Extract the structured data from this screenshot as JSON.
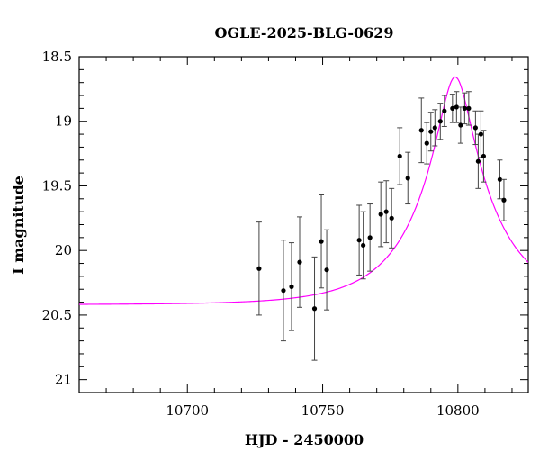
{
  "chart_data": {
    "type": "scatter",
    "title": "OGLE-2025-BLG-0629",
    "xlabel": "HJD - 2450000",
    "ylabel": "I magnitude",
    "xlim": [
      10660,
      10826
    ],
    "ylim": [
      21.1,
      18.5
    ],
    "y_inverted": true,
    "xticks": [
      10700,
      10750,
      10800
    ],
    "yticks": [
      18.5,
      19,
      19.5,
      20,
      20.5,
      21
    ],
    "ytick_labels": [
      "18.5",
      "19",
      "19.5",
      "20",
      "20.5",
      "21"
    ],
    "grid": false,
    "colors": {
      "data": "#000000",
      "model": "#ff00ff"
    },
    "series": [
      {
        "kind": "points_with_errorbars",
        "points": [
          {
            "x": 10726.5,
            "y": 20.14,
            "err": 0.36
          },
          {
            "x": 10735.5,
            "y": 20.31,
            "err": 0.39
          },
          {
            "x": 10738.5,
            "y": 20.28,
            "err": 0.34
          },
          {
            "x": 10741.5,
            "y": 20.09,
            "err": 0.35
          },
          {
            "x": 10747.0,
            "y": 20.45,
            "err": 0.4
          },
          {
            "x": 10749.5,
            "y": 19.93,
            "err": 0.36
          },
          {
            "x": 10751.5,
            "y": 20.15,
            "err": 0.31
          },
          {
            "x": 10763.5,
            "y": 19.92,
            "err": 0.27
          },
          {
            "x": 10765.0,
            "y": 19.96,
            "err": 0.26
          },
          {
            "x": 10767.5,
            "y": 19.9,
            "err": 0.26
          },
          {
            "x": 10771.5,
            "y": 19.72,
            "err": 0.25
          },
          {
            "x": 10773.5,
            "y": 19.7,
            "err": 0.24
          },
          {
            "x": 10775.5,
            "y": 19.75,
            "err": 0.23
          },
          {
            "x": 10778.5,
            "y": 19.27,
            "err": 0.22
          },
          {
            "x": 10781.5,
            "y": 19.44,
            "err": 0.2
          },
          {
            "x": 10786.5,
            "y": 19.07,
            "err": 0.25
          },
          {
            "x": 10788.5,
            "y": 19.17,
            "err": 0.16
          },
          {
            "x": 10790.0,
            "y": 19.08,
            "err": 0.15
          },
          {
            "x": 10791.5,
            "y": 19.05,
            "err": 0.14
          },
          {
            "x": 10793.5,
            "y": 19.0,
            "err": 0.14
          },
          {
            "x": 10795.0,
            "y": 18.92,
            "err": 0.12
          },
          {
            "x": 10798.0,
            "y": 18.9,
            "err": 0.11
          },
          {
            "x": 10799.5,
            "y": 18.89,
            "err": 0.12
          },
          {
            "x": 10801.0,
            "y": 19.03,
            "err": 0.14
          },
          {
            "x": 10802.5,
            "y": 18.9,
            "err": 0.12
          },
          {
            "x": 10804.0,
            "y": 18.9,
            "err": 0.13
          },
          {
            "x": 10806.5,
            "y": 19.05,
            "err": 0.13
          },
          {
            "x": 10807.5,
            "y": 19.31,
            "err": 0.21
          },
          {
            "x": 10808.5,
            "y": 19.1,
            "err": 0.18
          },
          {
            "x": 10809.5,
            "y": 19.27,
            "err": 0.2
          },
          {
            "x": 10815.5,
            "y": 19.45,
            "err": 0.15
          },
          {
            "x": 10817.0,
            "y": 19.61,
            "err": 0.16
          }
        ]
      },
      {
        "kind": "model_curve",
        "model": {
          "baseline_mag": 20.42,
          "t0": 10799.0,
          "u0": 0.2,
          "tE": 28.0
        }
      }
    ]
  }
}
